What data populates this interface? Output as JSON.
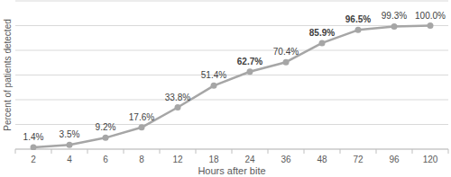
{
  "chart_data": {
    "type": "line",
    "x_label": "Hours after bite",
    "y_label": "Percent of patients detected",
    "categories": [
      "2",
      "4",
      "6",
      "8",
      "12",
      "18",
      "24",
      "36",
      "48",
      "72",
      "96",
      "120"
    ],
    "values": [
      1.4,
      3.5,
      9.2,
      17.6,
      33.8,
      51.4,
      62.7,
      70.4,
      85.9,
      96.5,
      99.3,
      100.0
    ],
    "value_labels": [
      "1.4%",
      "3.5%",
      "9.2%",
      "17.6%",
      "33.8%",
      "51.4%",
      "62.7%",
      "70.4%",
      "85.9%",
      "96.5%",
      "99.3%",
      "100.0%"
    ],
    "ylim": [
      0,
      120
    ],
    "yticks": [
      0,
      20,
      40,
      60,
      80,
      100,
      120
    ],
    "grid": true,
    "data_labels": true,
    "tick_labels": "x",
    "color": "#a6a6a6",
    "marker": "circle"
  }
}
